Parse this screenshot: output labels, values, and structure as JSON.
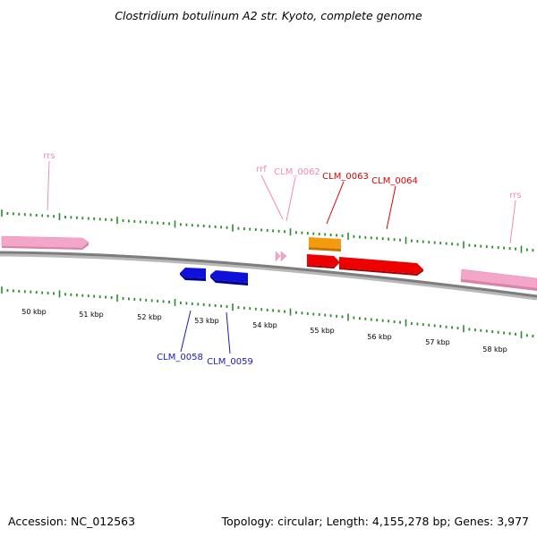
{
  "title": "Clostridium botulinum A2 str. Kyoto, complete genome",
  "footer": {
    "accession": "Accession: NC_012563",
    "summary": "Topology: circular; Length: 4,155,278 bp; Genes: 3,977"
  },
  "colors": {
    "tick": "#2e8b2e",
    "backbone": "#8c8c8c",
    "rrna": "#f4a6c8",
    "rrna_label": "#f08ab6",
    "gene_red": "#ee0000",
    "gene_orange": "#f39a10",
    "gene_blue": "#1010dd",
    "label_blue": "#1a1ab0",
    "label_red": "#dd0000"
  },
  "scale": {
    "unit": "kbp",
    "labels": [
      "50 kbp",
      "51 kbp",
      "52 kbp",
      "53 kbp",
      "54 kbp",
      "55 kbp",
      "56 kbp",
      "57 kbp",
      "58 kbp"
    ]
  },
  "features": [
    {
      "id": "rrs_left",
      "label": "rrs",
      "type": "rRNA",
      "strand": "+",
      "color": "rrna"
    },
    {
      "id": "rrf",
      "label": "rrf",
      "type": "rRNA",
      "strand": "+",
      "color": "rrna"
    },
    {
      "id": "CLM_0062",
      "label": "CLM_0062",
      "type": "rRNA",
      "strand": "+",
      "color": "rrna"
    },
    {
      "id": "CLM_0063",
      "label": "CLM_0063",
      "type": "CDS",
      "strand": "+",
      "color": "gene_red"
    },
    {
      "id": "CLM_0064",
      "label": "CLM_0064",
      "type": "CDS",
      "strand": "+",
      "color": "gene_red"
    },
    {
      "id": "orange_gene",
      "label": "",
      "type": "CDS",
      "strand": "+",
      "color": "gene_orange"
    },
    {
      "id": "rrs_right",
      "label": "rrs",
      "type": "rRNA",
      "strand": "+",
      "color": "rrna"
    },
    {
      "id": "CLM_0058",
      "label": "CLM_0058",
      "type": "CDS",
      "strand": "-",
      "color": "gene_blue"
    },
    {
      "id": "CLM_0059",
      "label": "CLM_0059",
      "type": "CDS",
      "strand": "-",
      "color": "gene_blue"
    }
  ]
}
